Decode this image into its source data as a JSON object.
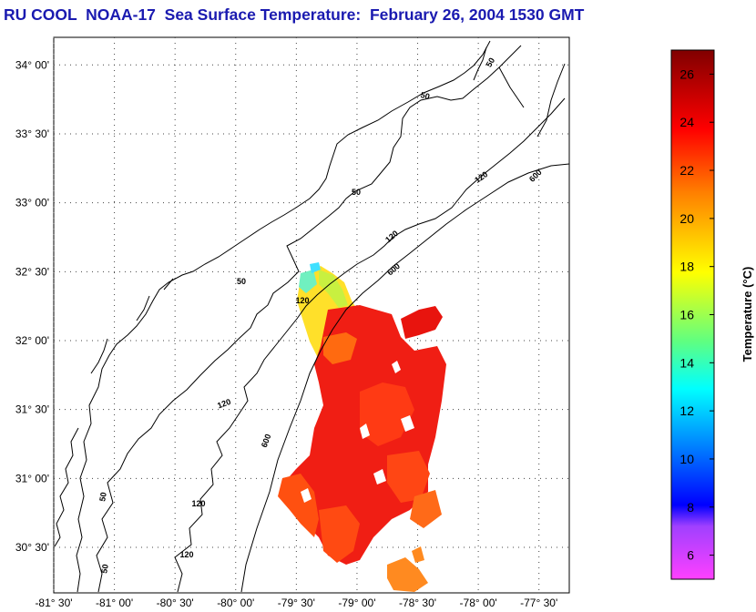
{
  "title": "RU COOL  NOAA-17  Sea Surface Temperature:  February 26, 2004 1530 GMT",
  "map": {
    "lat_ticks": [
      {
        "lat": 34.0,
        "label": "34° 00'"
      },
      {
        "lat": 33.5,
        "label": "33° 30'"
      },
      {
        "lat": 33.0,
        "label": "33° 00'"
      },
      {
        "lat": 32.5,
        "label": "32° 30'"
      },
      {
        "lat": 32.0,
        "label": "32° 00'"
      },
      {
        "lat": 31.5,
        "label": "31° 30'"
      },
      {
        "lat": 31.0,
        "label": "31° 00'"
      },
      {
        "lat": 30.5,
        "label": "30° 30'"
      }
    ],
    "lon_ticks": [
      {
        "lon": -81.5,
        "label": "-81° 30'"
      },
      {
        "lon": -81.0,
        "label": "-81° 00'"
      },
      {
        "lon": -80.5,
        "label": "-80° 30'"
      },
      {
        "lon": -80.0,
        "label": "-80° 00'"
      },
      {
        "lon": -79.5,
        "label": "-79° 30'"
      },
      {
        "lon": -79.0,
        "label": "-79° 00'"
      },
      {
        "lon": -78.5,
        "label": "-78° 30'"
      },
      {
        "lon": -78.0,
        "label": "-78° 00'"
      },
      {
        "lon": -77.5,
        "label": "-77° 30'"
      }
    ],
    "lon_range": [
      -81.5,
      -77.25
    ],
    "lat_range": [
      30.17,
      34.2
    ],
    "grid": true,
    "isobath_labels": [
      "50",
      "50",
      "50",
      "50",
      "50",
      "50",
      "120",
      "120",
      "120",
      "120",
      "120",
      "120",
      "600",
      "600",
      "600"
    ]
  },
  "colorbar": {
    "title": "Temperature (°C)",
    "ticks": [
      "6",
      "8",
      "10",
      "12",
      "14",
      "16",
      "18",
      "20",
      "22",
      "24",
      "26"
    ],
    "range": [
      5,
      27
    ],
    "colors": [
      "#ff40ff",
      "#0000ff",
      "#00ffff",
      "#ffff00",
      "#ff8000",
      "#ff0000",
      "#800000"
    ]
  }
}
